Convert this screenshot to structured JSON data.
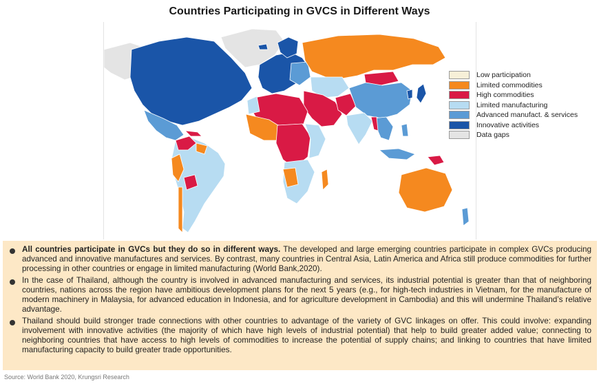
{
  "title": "Countries Participating in GVCS in Different Ways",
  "legend": {
    "items": [
      {
        "label": "Low participation",
        "color": "#f7f0d8"
      },
      {
        "label": "Limited commodities",
        "color": "#f5891f"
      },
      {
        "label": "High commodities",
        "color": "#d91a45"
      },
      {
        "label": "Limited manufacturing",
        "color": "#b7dcf2"
      },
      {
        "label": "Advanced manufact. & services",
        "color": "#5b9bd5"
      },
      {
        "label": "Innovative activities",
        "color": "#1a55a8"
      },
      {
        "label": "Data gaps",
        "color": "#e4e4e4"
      }
    ]
  },
  "bullets": [
    {
      "bold": "All countries participate in GVCs but they do so in different ways.",
      "text": " The developed and large emerging countries participate in complex GVCs producing advanced and innovative manufactures and services. By contrast, many countries in Central Asia, Latin America and Africa still produce commodities for further processing in other countries or engage in limited manufacturing (World Bank,2020)."
    },
    {
      "bold": "",
      "text": "In the case of Thailand, although the country is involved in advanced manufacturing and services, its industrial potential is greater than that of neighboring countries, nations across the region have ambitious development plans for the next 5 years (e.g., for high-tech industries in Vietnam, for the manufacture of modern machinery in Malaysia, for advanced education in Indonesia, and for agriculture development in Cambodia) and this will undermine Thailand’s relative advantage."
    },
    {
      "bold": "",
      "text": "Thailand should build stronger trade connections with other countries to advantage of the variety of GVC linkages on offer. This could involve: expanding involvement with innovative activities (the majority of which have high levels of industrial potential) that help to build greater added value; connecting to neighboring countries that have access to high levels of commodities to increase the potential of supply chains; and linking to countries that have limited manufacturing capacity to build greater trade opportunities."
    }
  ],
  "source": "Source: World Bank 2020, Krungsri Research"
}
